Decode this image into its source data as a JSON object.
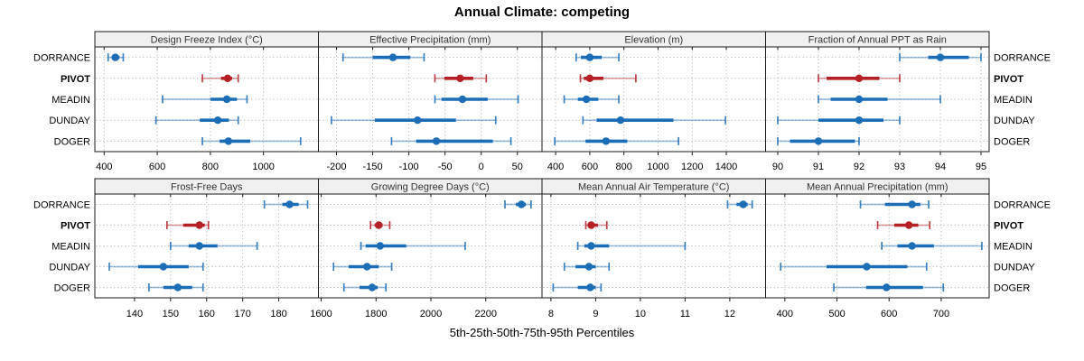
{
  "title": "Annual Climate: competing",
  "footer": "5th-25th-50th-75th-95th Percentiles",
  "chart_data": {
    "type": "trellis-dotplot",
    "title": "Annual Climate: competing",
    "xlabel": "5th-25th-50th-75th-95th Percentiles",
    "value_format": "[p5, p25, p50, p75, p95]",
    "categories": [
      "DORRANCE",
      "PIVOT",
      "MEADIN",
      "DUNDAY",
      "DOGER"
    ],
    "highlight_category": "PIVOT",
    "colors": {
      "series": "#1b6db5",
      "highlight": "#b42025",
      "panel_header_bg": "#f0f0f0",
      "panel_border": "#1a1a1a",
      "grid": "#c4c4c4",
      "text": "#000000",
      "header_text": "#333333"
    },
    "grid": "dotted",
    "panels": [
      {
        "title": "Design Freeze Index (°C)",
        "row": 0,
        "col": 0,
        "xlim": [
          365,
          1207
        ],
        "ticks": [
          400,
          600,
          800,
          1000
        ],
        "series": [
          {
            "name": "DORRANCE",
            "values": [
              415,
              428,
              442,
              458,
              472
            ]
          },
          {
            "name": "PIVOT",
            "values": [
              770,
              840,
              865,
              882,
              905
            ]
          },
          {
            "name": "MEADIN",
            "values": [
              620,
              800,
              862,
              900,
              938
            ]
          },
          {
            "name": "DUNDAY",
            "values": [
              595,
              760,
              828,
              870,
              905
            ]
          },
          {
            "name": "DOGER",
            "values": [
              770,
              835,
              868,
              950,
              1140
            ]
          }
        ]
      },
      {
        "title": "Effective Precipitation (mm)",
        "row": 0,
        "col": 1,
        "xlim": [
          -225,
          84
        ],
        "ticks": [
          -200,
          -150,
          -100,
          -50,
          0,
          50
        ],
        "series": [
          {
            "name": "DORRANCE",
            "values": [
              -191,
              -150,
              -122,
              -98,
              -79
            ]
          },
          {
            "name": "PIVOT",
            "values": [
              -64,
              -51,
              -29,
              -11,
              7
            ]
          },
          {
            "name": "MEADIN",
            "values": [
              -64,
              -55,
              -26,
              9,
              51
            ]
          },
          {
            "name": "DUNDAY",
            "values": [
              -207,
              -147,
              -88,
              -35,
              20
            ]
          },
          {
            "name": "DOGER",
            "values": [
              -124,
              -90,
              -62,
              16,
              41
            ]
          }
        ]
      },
      {
        "title": "Elevation (m)",
        "row": 0,
        "col": 2,
        "xlim": [
          320,
          1630
        ],
        "ticks": [
          400,
          600,
          800,
          1000,
          1200,
          1400
        ],
        "series": [
          {
            "name": "DORRANCE",
            "values": [
              520,
              548,
              600,
              670,
              770
            ]
          },
          {
            "name": "PIVOT",
            "values": [
              545,
              565,
              600,
              680,
              870
            ]
          },
          {
            "name": "MEADIN",
            "values": [
              450,
              530,
              580,
              650,
              770
            ]
          },
          {
            "name": "DUNDAY",
            "values": [
              560,
              640,
              780,
              1090,
              1395
            ]
          },
          {
            "name": "DOGER",
            "values": [
              395,
              575,
              695,
              820,
              1120
            ]
          }
        ]
      },
      {
        "title": "Fraction of Annual PPT as Rain",
        "row": 0,
        "col": 3,
        "xlim": [
          89.7,
          95.2
        ],
        "ticks": [
          90,
          91,
          92,
          93,
          94,
          95
        ],
        "series": [
          {
            "name": "DORRANCE",
            "values": [
              93,
              93.7,
              94,
              94.7,
              95
            ]
          },
          {
            "name": "PIVOT",
            "values": [
              91,
              91.2,
              92,
              92.5,
              93
            ]
          },
          {
            "name": "MEADIN",
            "values": [
              91,
              91.3,
              92,
              92.7,
              94
            ]
          },
          {
            "name": "DUNDAY",
            "values": [
              90,
              91,
              92,
              92.6,
              93
            ]
          },
          {
            "name": "DOGER",
            "values": [
              90,
              90.3,
              91,
              91.9,
              92
            ]
          }
        ]
      },
      {
        "title": "Frost-Free Days",
        "row": 1,
        "col": 0,
        "xlim": [
          129,
          191
        ],
        "ticks": [
          140,
          150,
          160,
          170,
          180
        ],
        "series": [
          {
            "name": "DORRANCE",
            "values": [
              176,
              181,
              183,
              185.5,
              188
            ]
          },
          {
            "name": "PIVOT",
            "values": [
              149,
              153.5,
              158,
              159.5,
              160.5
            ]
          },
          {
            "name": "MEADIN",
            "values": [
              150,
              155,
              158,
              163,
              174
            ]
          },
          {
            "name": "DUNDAY",
            "values": [
              133,
              141,
              148,
              155,
              159
            ]
          },
          {
            "name": "DOGER",
            "values": [
              144,
              148,
              152,
              156,
              159
            ]
          }
        ]
      },
      {
        "title": "Growing Degree Days (°C)",
        "row": 1,
        "col": 1,
        "xlim": [
          1590,
          2405
        ],
        "ticks": [
          1600,
          1800,
          2000,
          2200
        ],
        "series": [
          {
            "name": "DORRANCE",
            "values": [
              2270,
              2310,
              2330,
              2346,
              2365
            ]
          },
          {
            "name": "PIVOT",
            "values": [
              1780,
              1795,
              1810,
              1824,
              1850
            ]
          },
          {
            "name": "MEADIN",
            "values": [
              1745,
              1762,
              1815,
              1910,
              2125
            ]
          },
          {
            "name": "DUNDAY",
            "values": [
              1645,
              1700,
              1767,
              1810,
              1857
            ]
          },
          {
            "name": "DOGER",
            "values": [
              1683,
              1740,
              1786,
              1806,
              1836
            ]
          }
        ]
      },
      {
        "title": "Mean Annual Air Temperature (°C)",
        "row": 1,
        "col": 2,
        "xlim": [
          7.8,
          12.8
        ],
        "ticks": [
          8,
          9,
          10,
          11,
          12
        ],
        "series": [
          {
            "name": "DORRANCE",
            "values": [
              11.95,
              12.15,
              12.3,
              12.4,
              12.5
            ]
          },
          {
            "name": "PIVOT",
            "values": [
              8.78,
              8.83,
              8.9,
              9.05,
              9.25
            ]
          },
          {
            "name": "MEADIN",
            "values": [
              8.6,
              8.75,
              8.9,
              9.3,
              11.0
            ]
          },
          {
            "name": "DUNDAY",
            "values": [
              8.3,
              8.55,
              8.85,
              9.0,
              9.3
            ]
          },
          {
            "name": "DOGER",
            "values": [
              8.05,
              8.6,
              8.88,
              9.0,
              9.12
            ]
          }
        ]
      },
      {
        "title": "Mean Annual Precipitation (mm)",
        "row": 1,
        "col": 3,
        "xlim": [
          363,
          792
        ],
        "ticks": [
          400,
          500,
          600,
          700
        ],
        "series": [
          {
            "name": "DORRANCE",
            "values": [
              545,
              592,
              644,
              660,
              676
            ]
          },
          {
            "name": "PIVOT",
            "values": [
              578,
              610,
              638,
              656,
              678
            ]
          },
          {
            "name": "MEADIN",
            "values": [
              586,
              616,
              644,
              686,
              778
            ]
          },
          {
            "name": "DUNDAY",
            "values": [
              392,
              480,
              557,
              635,
              672
            ]
          },
          {
            "name": "DOGER",
            "values": [
              494,
              556,
              595,
              665,
              704
            ]
          }
        ]
      }
    ]
  }
}
